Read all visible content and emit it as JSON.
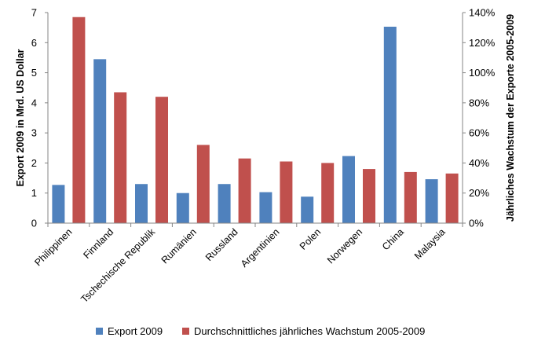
{
  "chart_data": {
    "type": "bar",
    "categories": [
      "Philippinen",
      "Finnland",
      "Tschechische Republik",
      "Rumänien",
      "Russland",
      "Argentinien",
      "Polen",
      "Norwegen",
      "China",
      "Malaysia"
    ],
    "series": [
      {
        "name": "Export 2009",
        "axis": "left",
        "color": "#4F81BD",
        "values": [
          1.27,
          5.45,
          1.3,
          1.0,
          1.3,
          1.03,
          0.88,
          2.23,
          6.53,
          1.46
        ]
      },
      {
        "name": "Durchschnittliches jährliches Wachstum 2005-2009",
        "axis": "right",
        "color": "#C0504D",
        "values": [
          137,
          87,
          84,
          52,
          43,
          41,
          40,
          36,
          34,
          33
        ]
      }
    ],
    "ylabel": "Export 2009 in Mrd. US Dollar",
    "ylim": [
      0,
      7
    ],
    "y_ticks": [
      "0",
      "1",
      "2",
      "3",
      "4",
      "5",
      "6",
      "7"
    ],
    "y2label": "Jährliches Wachstum der Exporte 2005-2009",
    "y2lim": [
      0,
      140
    ],
    "y2_ticks": [
      "0%",
      "20%",
      "40%",
      "60%",
      "80%",
      "100%",
      "120%",
      "140%"
    ],
    "grid": false,
    "legend_position": "bottom"
  }
}
